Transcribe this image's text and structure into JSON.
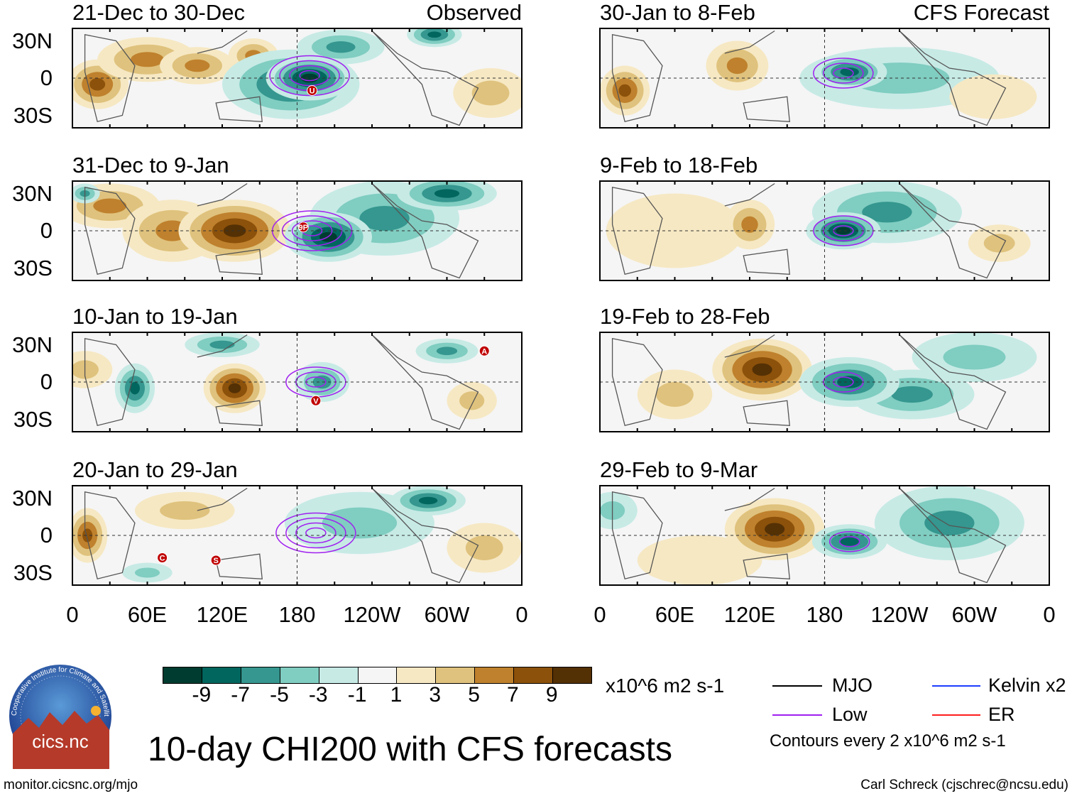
{
  "chart_data": {
    "type": "heatmap",
    "title": "10-day CHI200 with CFS forecasts",
    "units": "x10^6 m2 s-1",
    "lon_ticks": [
      "0",
      "60E",
      "120E",
      "180",
      "120W",
      "60W",
      "0"
    ],
    "lat_ticks": [
      "30N",
      "0",
      "30S"
    ],
    "lon_range": [
      0,
      360
    ],
    "lat_range": [
      -40,
      40
    ],
    "colorbar": {
      "labels": [
        "-9",
        "-7",
        "-5",
        "-3",
        "-1",
        "1",
        "3",
        "5",
        "7",
        "9"
      ],
      "colors": [
        "#003c30",
        "#01665e",
        "#35978f",
        "#80cdc1",
        "#c7eae5",
        "#f5f5f5",
        "#f6e8c3",
        "#dfc27d",
        "#bf812d",
        "#8c510a",
        "#543005"
      ]
    },
    "panels": [
      {
        "title": "21-Dec to 30-Dec",
        "tag": "Observed",
        "col": 0,
        "row": 0,
        "blobs": [
          [
            20,
            -5,
            7,
            25,
            20
          ],
          [
            60,
            15,
            5,
            40,
            18
          ],
          [
            100,
            10,
            5,
            30,
            15
          ],
          [
            145,
            18,
            5,
            20,
            14
          ],
          [
            175,
            -5,
            -7,
            55,
            28
          ],
          [
            190,
            0,
            -9,
            35,
            18
          ],
          [
            215,
            25,
            -5,
            35,
            14
          ],
          [
            290,
            35,
            -7,
            22,
            10
          ],
          [
            335,
            -12,
            3,
            30,
            20
          ]
        ],
        "low": [
          [
            190,
            2,
            4
          ]
        ],
        "storms": [
          [
            192,
            -10,
            "U"
          ]
        ]
      },
      {
        "title": "31-Dec to 9-Jan",
        "tag": "",
        "col": 0,
        "row": 1,
        "blobs": [
          [
            30,
            20,
            5,
            40,
            18
          ],
          [
            80,
            0,
            5,
            40,
            25
          ],
          [
            130,
            0,
            9,
            45,
            25
          ],
          [
            10,
            30,
            -5,
            12,
            8
          ],
          [
            250,
            10,
            -5,
            60,
            30
          ],
          [
            205,
            -5,
            -9,
            35,
            20
          ],
          [
            300,
            30,
            -7,
            40,
            14
          ]
        ],
        "low": [
          [
            192,
            0,
            4
          ]
        ],
        "storms": [
          [
            185,
            3,
            "9P"
          ]
        ]
      },
      {
        "title": "10-Jan to 19-Jan",
        "tag": "",
        "col": 0,
        "row": 2,
        "blobs": [
          [
            10,
            10,
            3,
            22,
            15
          ],
          [
            50,
            -5,
            -7,
            16,
            20
          ],
          [
            120,
            30,
            -5,
            30,
            10
          ],
          [
            130,
            -5,
            9,
            25,
            20
          ],
          [
            200,
            0,
            -5,
            22,
            16
          ],
          [
            300,
            25,
            -5,
            25,
            10
          ],
          [
            320,
            -15,
            3,
            20,
            15
          ]
        ],
        "low": [
          [
            195,
            0,
            3
          ]
        ],
        "storms": [
          [
            330,
            25,
            "A"
          ],
          [
            195,
            -15,
            "V"
          ]
        ]
      },
      {
        "title": "20-Jan to 29-Jan",
        "tag": "",
        "col": 0,
        "row": 3,
        "blobs": [
          [
            12,
            0,
            7,
            16,
            22
          ],
          [
            90,
            20,
            3,
            40,
            15
          ],
          [
            230,
            10,
            -3,
            60,
            25
          ],
          [
            285,
            28,
            -7,
            30,
            12
          ],
          [
            330,
            -10,
            3,
            30,
            20
          ],
          [
            60,
            -30,
            -3,
            20,
            8
          ]
        ],
        "low": [
          [
            195,
            2,
            4
          ]
        ],
        "storms": [
          [
            72,
            -18,
            "C"
          ],
          [
            115,
            -20,
            "S"
          ]
        ]
      },
      {
        "title": "30-Jan to 8-Feb",
        "tag": "CFS Forecast",
        "col": 1,
        "row": 0,
        "blobs": [
          [
            20,
            -10,
            7,
            20,
            20
          ],
          [
            110,
            10,
            5,
            25,
            20
          ],
          [
            240,
            0,
            -3,
            80,
            25
          ],
          [
            200,
            5,
            -7,
            30,
            14
          ],
          [
            315,
            -15,
            1,
            35,
            18
          ]
        ],
        "low": [
          [
            195,
            4,
            3
          ]
        ],
        "storms": []
      },
      {
        "title": "9-Feb to 18-Feb",
        "tag": "",
        "col": 1,
        "row": 1,
        "blobs": [
          [
            60,
            0,
            1,
            55,
            30
          ],
          [
            120,
            5,
            5,
            20,
            20
          ],
          [
            230,
            15,
            -5,
            60,
            25
          ],
          [
            195,
            0,
            -9,
            30,
            15
          ],
          [
            320,
            -10,
            3,
            25,
            15
          ]
        ],
        "low": [
          [
            195,
            0,
            3
          ]
        ],
        "storms": []
      },
      {
        "title": "19-Feb to 28-Feb",
        "tag": "",
        "col": 1,
        "row": 2,
        "blobs": [
          [
            60,
            -10,
            3,
            30,
            20
          ],
          [
            130,
            10,
            9,
            40,
            25
          ],
          [
            300,
            20,
            -3,
            50,
            20
          ],
          [
            250,
            -10,
            -5,
            50,
            20
          ],
          [
            200,
            0,
            -7,
            40,
            20
          ]
        ],
        "low": [
          [
            195,
            0,
            2
          ]
        ],
        "storms": []
      },
      {
        "title": "29-Feb to 9-Mar",
        "tag": "",
        "col": 1,
        "row": 3,
        "blobs": [
          [
            80,
            -20,
            1,
            50,
            20
          ],
          [
            140,
            5,
            9,
            40,
            25
          ],
          [
            280,
            10,
            -5,
            60,
            30
          ],
          [
            200,
            -5,
            -7,
            30,
            14
          ],
          [
            10,
            20,
            -3,
            20,
            15
          ]
        ],
        "low": [
          [
            200,
            -5,
            2
          ]
        ],
        "storms": []
      }
    ]
  },
  "legend": {
    "mjo": "MJO",
    "low": "Low",
    "kelvin": "Kelvin x2",
    "er": "ER",
    "contours": "Contours every 2 x10^6 m2 s-1"
  },
  "footer": {
    "url": "monitor.cicsnc.org/mjo",
    "author": "Carl Schreck (cjschrec@ncsu.edu)",
    "logo_text": "cics.nc",
    "logo_ring": "Cooperative Institute for Climate and Satellites"
  }
}
